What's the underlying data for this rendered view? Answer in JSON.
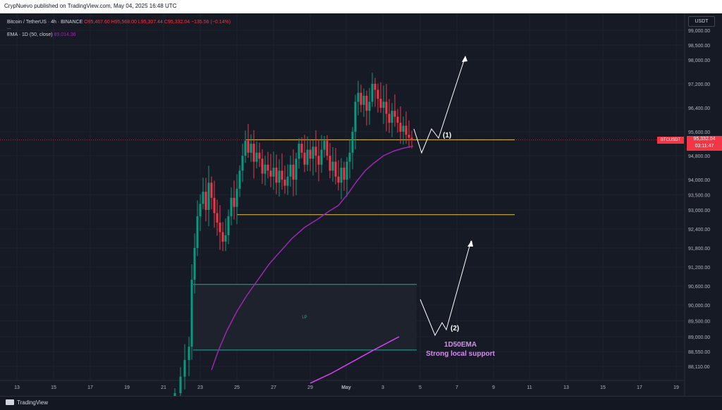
{
  "header": {
    "published": "CrypNuevo published on TradingView.com, May 04, 2025 16:48 UTC"
  },
  "legend": {
    "symbol": "Bitcoin / TetherUS · 4h · BINANCE",
    "o": "O95,467.60",
    "h": "H95,568.00",
    "l": "L95,307.44",
    "c": "C95,332.04",
    "chg": "−135.56 (−0.14%)",
    "dots": "...",
    "ema_label": "EMA · 1D (50, close)",
    "ema_value": "89,014.36"
  },
  "currency": "USDT",
  "price_tag": {
    "symbol": "BTCUSDT",
    "price": "95,332.04",
    "countdown": "03:11:47"
  },
  "footer": {
    "brand": "TradingView"
  },
  "chart_data": {
    "type": "candlestick",
    "price_axis_ticks": [
      99000,
      98500,
      98000,
      97200,
      96400,
      95600,
      94800,
      94000,
      93500,
      93000,
      92400,
      91800,
      91200,
      90600,
      90000,
      89500,
      89000,
      88550,
      88110
    ],
    "price_axis_labels": [
      "99,000.00",
      "98,500.00",
      "98,000.00",
      "97,200.00",
      "96,400.00",
      "95,600.00",
      "94,800.00",
      "94,000.00",
      "93,500.00",
      "93,000.00",
      "92,400.00",
      "91,800.00",
      "91,200.00",
      "90,600.00",
      "90,000.00",
      "89,500.00",
      "89,000.00",
      "88,550.00",
      "88,110.00"
    ],
    "time_axis_labels": [
      "13",
      "15",
      "17",
      "19",
      "21",
      "23",
      "25",
      "27",
      "29",
      "May",
      "3",
      "5",
      "7",
      "9",
      "11",
      "13",
      "15",
      "17",
      "19"
    ],
    "levels": [
      {
        "name": "upper-level",
        "price": 95332,
        "color": "#e5c04b"
      },
      {
        "name": "lower-level",
        "price": 92850,
        "color": "#e5c04b"
      }
    ],
    "zone": {
      "label": "LP",
      "top": 90650,
      "bottom": 88600,
      "color": "#26a69a"
    },
    "annotations": {
      "scenario1": "(1)",
      "scenario2": "(2)",
      "ema_title": "1D50EMA",
      "ema_subtitle": "Strong local support"
    },
    "colors": {
      "up": "#089981",
      "down": "#f23645",
      "ema": "#9c27b0",
      "bg": "#161a25"
    }
  }
}
